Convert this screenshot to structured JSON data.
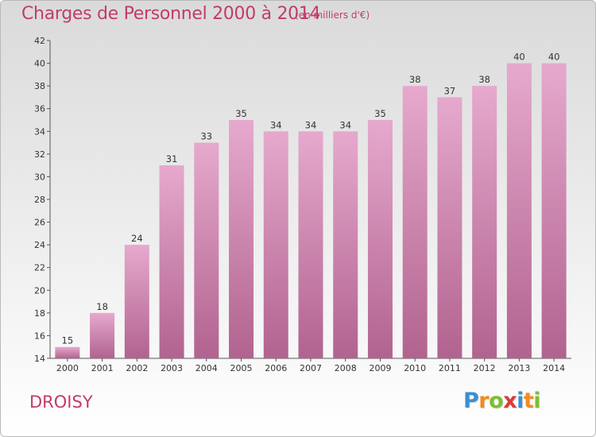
{
  "chart_data": {
    "type": "bar",
    "title": "Charges de Personnel 2000 à 2014",
    "subtitle": "(en milliers d'€)",
    "categories": [
      "2000",
      "2001",
      "2002",
      "2003",
      "2004",
      "2005",
      "2006",
      "2007",
      "2008",
      "2009",
      "2010",
      "2011",
      "2012",
      "2013",
      "2014"
    ],
    "values": [
      15,
      18,
      24,
      31,
      33,
      35,
      34,
      34,
      34,
      35,
      38,
      37,
      38,
      40,
      40
    ],
    "ylim": [
      14,
      42
    ],
    "yticks": [
      14,
      16,
      18,
      20,
      22,
      24,
      26,
      28,
      30,
      32,
      34,
      36,
      38,
      40,
      42
    ],
    "grid": false,
    "bar_color_top": "#e6a9cd",
    "bar_color_bottom": "#b1638f"
  },
  "footer": {
    "place": "DROISY",
    "logo_letters": [
      {
        "ch": "P",
        "color": "#3b8fd1"
      },
      {
        "ch": "r",
        "color": "#ef8c22"
      },
      {
        "ch": "o",
        "color": "#7cbf2f"
      },
      {
        "ch": "x",
        "color": "#d93a3a"
      },
      {
        "ch": "i",
        "color": "#3b8fd1"
      },
      {
        "ch": "t",
        "color": "#ef8c22"
      },
      {
        "ch": "i",
        "color": "#7cbf2f"
      }
    ]
  }
}
